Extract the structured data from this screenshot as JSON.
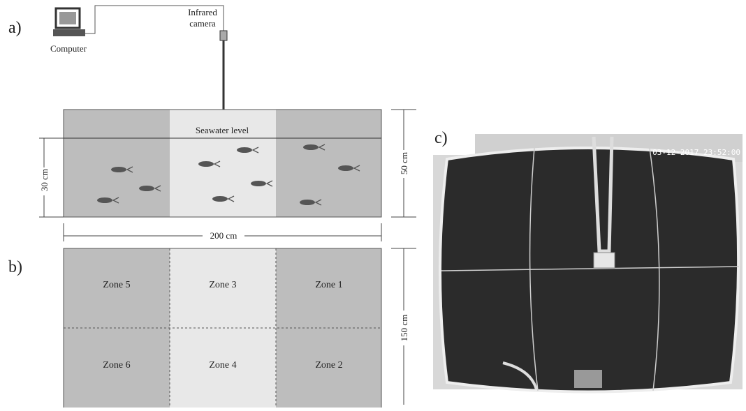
{
  "panels": {
    "a": {
      "label": "a)",
      "computer": "Computer",
      "camera": [
        "Infrared",
        "camera"
      ],
      "water": "Seawater level",
      "depth": "30 cm",
      "height": "50 cm",
      "width": "200 cm"
    },
    "b": {
      "label": "b)",
      "zones": [
        [
          "Zone 5",
          "Zone 3",
          "Zone 1"
        ],
        [
          "Zone 6",
          "Zone 4",
          "Zone 2"
        ]
      ],
      "length": "150 cm"
    },
    "c": {
      "label": "c)",
      "timestamp": "03-12-2017 23:52:00"
    }
  }
}
